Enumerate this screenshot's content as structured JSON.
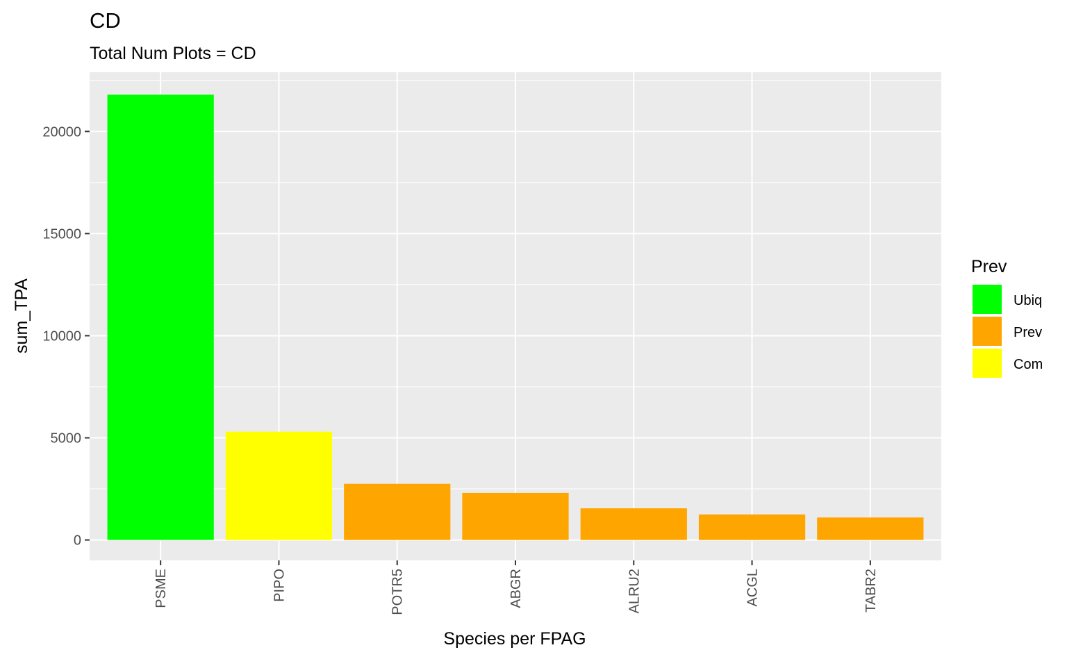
{
  "chart_data": {
    "type": "bar",
    "title": "CD",
    "subtitle": "Total Num Plots = CD",
    "xlabel": "Species per FPAG",
    "ylabel": "sum_TPA",
    "categories": [
      "PSME",
      "PIPO",
      "POTR5",
      "ABGR",
      "ALRU2",
      "ACGL",
      "TABR2"
    ],
    "values": [
      21800,
      5300,
      2750,
      2300,
      1550,
      1250,
      1100
    ],
    "groups": [
      "Ubiq",
      "Com",
      "Prev",
      "Prev",
      "Prev",
      "Prev",
      "Prev"
    ],
    "ylim": [
      -1000,
      22900
    ],
    "yticks": [
      0,
      5000,
      10000,
      15000,
      20000
    ],
    "ytick_labels": [
      "0",
      "5000",
      "10000",
      "15000",
      "20000"
    ],
    "grid": true,
    "panel_background": "#ebebeb",
    "legend": {
      "title": "Prev",
      "position": "right",
      "entries": [
        {
          "label": "Ubiq",
          "color": "#00ff00"
        },
        {
          "label": "Prev",
          "color": "#ffa500"
        },
        {
          "label": "Com",
          "color": "#ffff00"
        }
      ]
    }
  }
}
